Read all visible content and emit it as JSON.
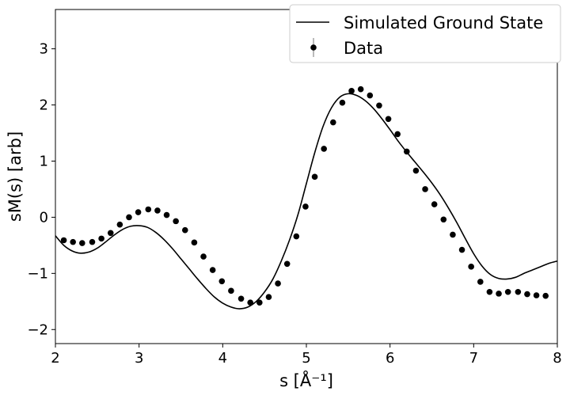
{
  "chart_data": {
    "type": "line",
    "xlabel": "s [Å⁻¹]",
    "ylabel": "sM(s) [arb]",
    "xlim": [
      2,
      8
    ],
    "ylim": [
      -2.25,
      3.7
    ],
    "xticks": [
      "2",
      "3",
      "4",
      "5",
      "6",
      "7",
      "8"
    ],
    "yticks": [
      "−2",
      "−1",
      "0",
      "1",
      "2",
      "3"
    ],
    "grid": false,
    "legend": "top-right",
    "series": [
      {
        "name": "Simulated Ground State",
        "style": "line",
        "color": "#000000",
        "x": [
          2.0,
          2.1,
          2.2,
          2.3,
          2.4,
          2.5,
          2.6,
          2.7,
          2.8,
          2.9,
          3.0,
          3.1,
          3.2,
          3.3,
          3.4,
          3.5,
          3.6,
          3.7,
          3.8,
          3.9,
          4.0,
          4.1,
          4.2,
          4.3,
          4.4,
          4.5,
          4.6,
          4.7,
          4.8,
          4.9,
          5.0,
          5.1,
          5.2,
          5.3,
          5.4,
          5.5,
          5.6,
          5.7,
          5.8,
          5.9,
          6.0,
          6.1,
          6.2,
          6.3,
          6.4,
          6.5,
          6.6,
          6.7,
          6.8,
          6.9,
          7.0,
          7.1,
          7.2,
          7.3,
          7.4,
          7.5,
          7.6,
          7.7,
          7.8,
          7.9,
          8.0
        ],
        "y": [
          -0.33,
          -0.5,
          -0.6,
          -0.64,
          -0.62,
          -0.55,
          -0.44,
          -0.32,
          -0.22,
          -0.16,
          -0.15,
          -0.18,
          -0.27,
          -0.4,
          -0.56,
          -0.74,
          -0.92,
          -1.1,
          -1.27,
          -1.42,
          -1.53,
          -1.6,
          -1.63,
          -1.6,
          -1.5,
          -1.33,
          -1.1,
          -0.78,
          -0.4,
          0.05,
          0.6,
          1.15,
          1.62,
          1.95,
          2.14,
          2.2,
          2.17,
          2.08,
          1.94,
          1.76,
          1.56,
          1.35,
          1.16,
          0.98,
          0.8,
          0.61,
          0.4,
          0.16,
          -0.1,
          -0.38,
          -0.65,
          -0.87,
          -1.02,
          -1.09,
          -1.1,
          -1.07,
          -1.0,
          -0.94,
          -0.88,
          -0.82,
          -0.78
        ]
      },
      {
        "name": "Data",
        "style": "points",
        "color": "#000000",
        "x": [
          2.1,
          2.21,
          2.32,
          2.44,
          2.55,
          2.66,
          2.77,
          2.88,
          2.99,
          3.11,
          3.22,
          3.33,
          3.44,
          3.55,
          3.66,
          3.77,
          3.88,
          3.99,
          4.1,
          4.22,
          4.33,
          4.44,
          4.55,
          4.66,
          4.77,
          4.88,
          4.99,
          5.1,
          5.21,
          5.32,
          5.43,
          5.54,
          5.65,
          5.76,
          5.87,
          5.98,
          6.09,
          6.2,
          6.31,
          6.42,
          6.53,
          6.64,
          6.75,
          6.86,
          6.97,
          7.08,
          7.19,
          7.3,
          7.41,
          7.53,
          7.64,
          7.75,
          7.86
        ],
        "y": [
          -0.41,
          -0.44,
          -0.46,
          -0.44,
          -0.38,
          -0.28,
          -0.13,
          0.0,
          0.09,
          0.14,
          0.12,
          0.04,
          -0.07,
          -0.23,
          -0.45,
          -0.7,
          -0.94,
          -1.14,
          -1.31,
          -1.45,
          -1.52,
          -1.52,
          -1.42,
          -1.18,
          -0.83,
          -0.34,
          0.19,
          0.72,
          1.22,
          1.69,
          2.04,
          2.25,
          2.28,
          2.17,
          1.99,
          1.75,
          1.48,
          1.17,
          0.83,
          0.5,
          0.23,
          -0.04,
          -0.31,
          -0.58,
          -0.88,
          -1.15,
          -1.33,
          -1.36,
          -1.33,
          -1.33,
          -1.37,
          -1.39,
          -1.4
        ]
      }
    ]
  }
}
